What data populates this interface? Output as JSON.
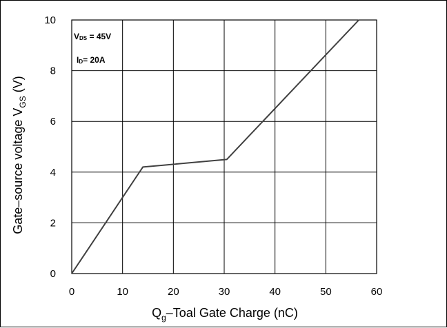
{
  "chart_data": {
    "type": "line",
    "xlabel": {
      "main": "Q",
      "sub": "g",
      "rest": "–Toal Gate Charge  (nC)"
    },
    "ylabel": {
      "main": "Gate–source voltage V",
      "sub": "GS",
      "rest": " (V)"
    },
    "xlim": [
      0,
      60
    ],
    "ylim": [
      0,
      10
    ],
    "x_ticks": [
      0,
      10,
      20,
      30,
      40,
      50,
      60
    ],
    "x_tick_labels": [
      "0",
      "10",
      "20",
      "30",
      "40",
      "50",
      "60"
    ],
    "y_ticks": [
      0,
      2,
      4,
      6,
      8,
      10
    ],
    "y_tick_labels": [
      "0",
      "2",
      "4",
      "6",
      "8",
      "10"
    ],
    "grid": true,
    "annotations": [
      {
        "main": "V",
        "sub": "DS",
        "rest": " = 45V"
      },
      {
        "main": "I",
        "sub": "D",
        "rest": "= 20A"
      }
    ],
    "series": [
      {
        "x": [
          0,
          14,
          30.5,
          56.5
        ],
        "y": [
          0,
          4.2,
          4.5,
          10.0
        ]
      }
    ],
    "colors": {
      "line": "#404040",
      "grid": "#000000",
      "frame": "#000000"
    }
  }
}
